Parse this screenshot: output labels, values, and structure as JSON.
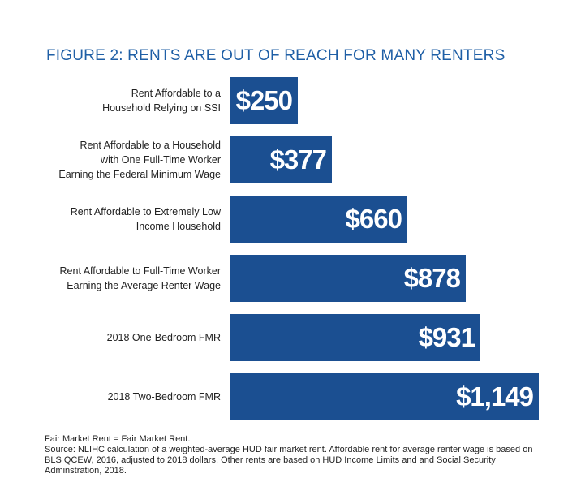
{
  "title": "FIGURE 2: RENTS ARE OUT OF REACH FOR MANY RENTERS",
  "chart_data": {
    "type": "bar",
    "orientation": "horizontal",
    "title": "FIGURE 2: RENTS ARE OUT OF REACH FOR MANY RENTERS",
    "categories": [
      [
        "Rent Affordable to a",
        "Household Relying on SSI"
      ],
      [
        "Rent Affordable to a Household",
        "with One Full-Time Worker",
        "Earning the Federal Minimum Wage"
      ],
      [
        "Rent Affordable to Extremely Low",
        "Income Household"
      ],
      [
        "Rent Affordable to Full-Time Worker",
        "Earning the Average Renter Wage"
      ],
      [
        "2018 One-Bedroom FMR"
      ],
      [
        "2018 Two-Bedroom FMR"
      ]
    ],
    "values": [
      250,
      377,
      660,
      878,
      931,
      1149
    ],
    "value_labels": [
      "$250",
      "$377",
      "$660",
      "$878",
      "$931",
      "$1,149"
    ],
    "bar_color": "#1b4f91",
    "grid": false,
    "legend": "none"
  },
  "notes": {
    "line1": "Fair Market Rent = Fair Market Rent.",
    "line2": "Source: NLIHC calculation of a weighted-average HUD fair market rent. Affordable rent for average renter wage is based on BLS QCEW, 2016, adjusted to 2018 dollars. Other rents are based on HUD Income Limits and and Social Security Adminstration, 2018."
  }
}
